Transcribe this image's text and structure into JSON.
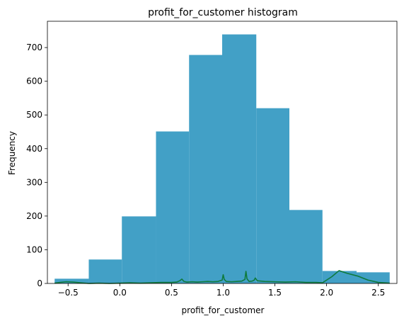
{
  "chart_data": {
    "type": "bar",
    "title": "profit_for_customer histogram",
    "xlabel": "profit_for_customer",
    "ylabel": "Frequency",
    "xlim": [
      -0.7,
      2.68
    ],
    "ylim": [
      0,
      778
    ],
    "x_ticks": [
      -0.5,
      0.0,
      0.5,
      1.0,
      1.5,
      2.0,
      2.5
    ],
    "x_tick_labels": [
      "−0.5",
      "0.0",
      "0.5",
      "1.0",
      "1.5",
      "2.0",
      "2.5"
    ],
    "y_ticks": [
      0,
      100,
      200,
      300,
      400,
      500,
      600,
      700
    ],
    "y_tick_labels": [
      "0",
      "100",
      "200",
      "300",
      "400",
      "500",
      "600",
      "700"
    ],
    "grid": false,
    "bar_color": "#42a0c6",
    "line_color": "#0f7a3c",
    "bins": [
      {
        "x0": -0.63,
        "x1": -0.3,
        "count": 14
      },
      {
        "x0": -0.3,
        "x1": 0.02,
        "count": 71
      },
      {
        "x0": 0.02,
        "x1": 0.35,
        "count": 199
      },
      {
        "x0": 0.35,
        "x1": 0.67,
        "count": 451
      },
      {
        "x0": 0.67,
        "x1": 0.99,
        "count": 678
      },
      {
        "x0": 0.99,
        "x1": 1.32,
        "count": 739
      },
      {
        "x0": 1.32,
        "x1": 1.64,
        "count": 520
      },
      {
        "x0": 1.64,
        "x1": 1.96,
        "count": 218
      },
      {
        "x0": 1.96,
        "x1": 2.29,
        "count": 37
      },
      {
        "x0": 2.29,
        "x1": 2.61,
        "count": 33
      }
    ],
    "line": {
      "x": [
        -0.63,
        -0.58,
        -0.52,
        -0.45,
        -0.38,
        -0.3,
        -0.2,
        -0.1,
        0.0,
        0.1,
        0.2,
        0.3,
        0.4,
        0.5,
        0.55,
        0.58,
        0.6,
        0.62,
        0.65,
        0.7,
        0.75,
        0.8,
        0.85,
        0.9,
        0.95,
        0.99,
        1.0,
        1.01,
        1.03,
        1.08,
        1.13,
        1.18,
        1.21,
        1.22,
        1.23,
        1.25,
        1.28,
        1.3,
        1.31,
        1.33,
        1.4,
        1.5,
        1.6,
        1.7,
        1.8,
        1.9,
        1.96,
        2.0,
        2.05,
        2.12,
        2.2,
        2.3,
        2.4,
        2.5,
        2.61
      ],
      "y": [
        1,
        3,
        5,
        4,
        2,
        0,
        1,
        0,
        1,
        2,
        1,
        2,
        3,
        3,
        4,
        8,
        13,
        6,
        4,
        5,
        4,
        5,
        6,
        5,
        6,
        10,
        26,
        12,
        6,
        5,
        6,
        7,
        12,
        36,
        14,
        6,
        7,
        10,
        16,
        8,
        6,
        5,
        4,
        5,
        3,
        3,
        2,
        10,
        20,
        38,
        30,
        22,
        10,
        3,
        1
      ]
    }
  }
}
